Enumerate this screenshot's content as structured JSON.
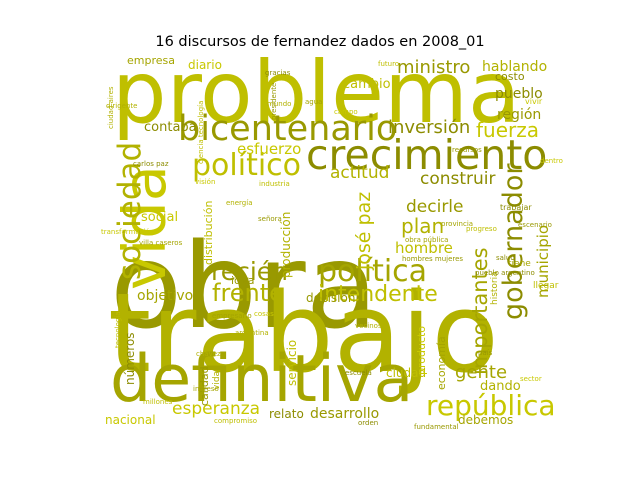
{
  "chart_data": {
    "type": "wordcloud",
    "title": "16 discursos de fernandez dados en 2008_01",
    "colors": [
      "#999900",
      "#b2b200",
      "#bfbf00",
      "#a5a500",
      "#c8c800",
      "#8c8c00"
    ],
    "words": [
      {
        "text": "obra",
        "weight": 1.0,
        "orientation": "horizontal"
      },
      {
        "text": "trabajo",
        "weight": 0.93,
        "orientation": "horizontal"
      },
      {
        "text": "problema",
        "weight": 0.73,
        "orientation": "horizontal"
      },
      {
        "text": "definitiva",
        "weight": 0.55,
        "orientation": "horizontal"
      },
      {
        "text": "vida",
        "weight": 0.5,
        "orientation": "vertical"
      },
      {
        "text": "crecimiento",
        "weight": 0.35,
        "orientation": "horizontal"
      },
      {
        "text": "bicentenario",
        "weight": 0.3,
        "orientation": "horizontal"
      },
      {
        "text": "sociedad",
        "weight": 0.26,
        "orientation": "vertical"
      },
      {
        "text": "político",
        "weight": 0.25,
        "orientation": "horizontal"
      },
      {
        "text": "política",
        "weight": 0.25,
        "orientation": "horizontal"
      },
      {
        "text": "república",
        "weight": 0.24,
        "orientation": "horizontal"
      },
      {
        "text": "gobernador",
        "weight": 0.23,
        "orientation": "vertical"
      },
      {
        "text": "recién",
        "weight": 0.21,
        "orientation": "horizontal"
      },
      {
        "text": "frente",
        "weight": 0.2,
        "orientation": "horizontal"
      },
      {
        "text": "intendente",
        "weight": 0.19,
        "orientation": "horizontal"
      },
      {
        "text": "importantes",
        "weight": 0.18,
        "orientation": "vertical"
      },
      {
        "text": "fuerza",
        "weight": 0.17,
        "orientation": "horizontal"
      },
      {
        "text": "inversión",
        "weight": 0.15,
        "orientation": "horizontal"
      },
      {
        "text": "ministro",
        "weight": 0.15,
        "orientation": "horizontal"
      },
      {
        "text": "plan",
        "weight": 0.17,
        "orientation": "horizontal"
      },
      {
        "text": "josé paz",
        "weight": 0.16,
        "orientation": "vertical"
      },
      {
        "text": "gente",
        "weight": 0.15,
        "orientation": "horizontal"
      },
      {
        "text": "esperanza",
        "weight": 0.14,
        "orientation": "horizontal"
      },
      {
        "text": "construir",
        "weight": 0.14,
        "orientation": "horizontal"
      },
      {
        "text": "decirle",
        "weight": 0.14,
        "orientation": "horizontal"
      },
      {
        "text": "actitud",
        "weight": 0.14,
        "orientation": "horizontal"
      },
      {
        "text": "hombre",
        "weight": 0.13,
        "orientation": "horizontal"
      },
      {
        "text": "municipio",
        "weight": 0.13,
        "orientation": "vertical"
      },
      {
        "text": "esfuerzo",
        "weight": 0.13,
        "orientation": "horizontal"
      },
      {
        "text": "pueblo",
        "weight": 0.12,
        "orientation": "horizontal"
      },
      {
        "text": "región",
        "weight": 0.12,
        "orientation": "horizontal"
      },
      {
        "text": "hablando",
        "weight": 0.12,
        "orientation": "horizontal"
      },
      {
        "text": "cambio",
        "weight": 0.11,
        "orientation": "horizontal"
      },
      {
        "text": "objetivo",
        "weight": 0.12,
        "orientation": "horizontal"
      },
      {
        "text": "social",
        "weight": 0.11,
        "orientation": "horizontal"
      },
      {
        "text": "contaba",
        "weight": 0.11,
        "orientation": "horizontal"
      },
      {
        "text": "desarrollo",
        "weight": 0.12,
        "orientation": "horizontal"
      },
      {
        "text": "dando",
        "weight": 0.11,
        "orientation": "horizontal"
      },
      {
        "text": "ciudad",
        "weight": 0.1,
        "orientation": "horizontal"
      },
      {
        "text": "debemos",
        "weight": 0.1,
        "orientation": "horizontal"
      },
      {
        "text": "nacional",
        "weight": 0.1,
        "orientation": "horizontal"
      },
      {
        "text": "relato",
        "weight": 0.1,
        "orientation": "horizontal"
      },
      {
        "text": "decisión",
        "weight": 0.1,
        "orientation": "horizontal"
      },
      {
        "text": "producción",
        "weight": 0.1,
        "orientation": "vertical"
      },
      {
        "text": "servicio",
        "weight": 0.1,
        "orientation": "vertical"
      },
      {
        "text": "economía",
        "weight": 0.09,
        "orientation": "vertical"
      },
      {
        "text": "producto",
        "weight": 0.09,
        "orientation": "vertical"
      },
      {
        "text": "números",
        "weight": 0.1,
        "orientation": "vertical"
      },
      {
        "text": "calidad",
        "weight": 0.09,
        "orientation": "vertical"
      },
      {
        "text": "vida",
        "weight": 0.08,
        "orientation": "vertical"
      },
      {
        "text": "distribución",
        "weight": 0.09,
        "orientation": "vertical"
      },
      {
        "text": "empresa",
        "weight": 0.09,
        "orientation": "horizontal"
      },
      {
        "text": "diario",
        "weight": 0.1,
        "orientation": "horizontal"
      },
      {
        "text": "costo",
        "weight": 0.09,
        "orientation": "horizontal"
      },
      {
        "text": "idea",
        "weight": 0.09,
        "orientation": "horizontal"
      },
      {
        "text": "historia",
        "weight": 0.08,
        "orientation": "vertical"
      },
      {
        "text": "llegar",
        "weight": 0.08,
        "orientation": "horizontal"
      },
      {
        "text": "tiene",
        "weight": 0.08,
        "orientation": "horizontal"
      },
      {
        "text": "vivir",
        "weight": 0.07,
        "orientation": "horizontal"
      },
      {
        "text": "trabajar",
        "weight": 0.07,
        "orientation": "horizontal"
      },
      {
        "text": "país",
        "weight": 0.06,
        "orientation": "horizontal"
      },
      {
        "text": "chávez",
        "weight": 0.06,
        "orientation": "horizontal"
      },
      {
        "text": "compromiso",
        "weight": 0.06,
        "orientation": "horizontal"
      },
      {
        "text": "ingreso",
        "weight": 0.05,
        "orientation": "horizontal"
      },
      {
        "text": "visión",
        "weight": 0.05,
        "orientation": "horizontal"
      },
      {
        "text": "orden",
        "weight": 0.05,
        "orientation": "horizontal"
      },
      {
        "text": "fundamental",
        "weight": 0.05,
        "orientation": "horizontal"
      },
      {
        "text": "argentina",
        "weight": 0.05,
        "orientation": "horizontal"
      },
      {
        "text": "futuro",
        "weight": 0.05,
        "orientation": "horizontal"
      },
      {
        "text": "provincia",
        "weight": 0.05,
        "orientation": "horizontal"
      },
      {
        "text": "sector",
        "weight": 0.04,
        "orientation": "horizontal"
      },
      {
        "text": "salud",
        "weight": 0.04,
        "orientation": "horizontal"
      },
      {
        "text": "señora",
        "weight": 0.04,
        "orientation": "horizontal"
      },
      {
        "text": "mundo",
        "weight": 0.04,
        "orientation": "horizontal"
      },
      {
        "text": "millones",
        "weight": 0.04,
        "orientation": "horizontal"
      },
      {
        "text": "agua",
        "weight": 0.05,
        "orientation": "horizontal"
      },
      {
        "text": "campo",
        "weight": 0.04,
        "orientation": "horizontal"
      },
      {
        "text": "escuela",
        "weight": 0.04,
        "orientation": "horizontal"
      },
      {
        "text": "presidente",
        "weight": 0.04,
        "orientation": "vertical"
      },
      {
        "text": "ciudad aires",
        "weight": 0.04,
        "orientation": "vertical"
      },
      {
        "text": "ciencia tecnología",
        "weight": 0.04,
        "orientation": "vertical"
      },
      {
        "text": "villa caseros",
        "weight": 0.04,
        "orientation": "horizontal"
      },
      {
        "text": "transformación",
        "weight": 0.04,
        "orientation": "horizontal"
      },
      {
        "text": "carlos paz",
        "weight": 0.04,
        "orientation": "horizontal"
      },
      {
        "text": "hombres mujeres",
        "weight": 0.04,
        "orientation": "horizontal"
      },
      {
        "text": "dirigente",
        "weight": 0.03,
        "orientation": "horizontal"
      },
      {
        "text": "industria",
        "weight": 0.03,
        "orientation": "horizontal"
      },
      {
        "text": "obra pública",
        "weight": 0.03,
        "orientation": "horizontal"
      },
      {
        "text": "dentro",
        "weight": 0.03,
        "orientation": "horizontal"
      },
      {
        "text": "pueblo argentino",
        "weight": 0.03,
        "orientation": "horizontal"
      },
      {
        "text": "recursos",
        "weight": 0.03,
        "orientation": "horizontal"
      },
      {
        "text": "energía",
        "weight": 0.03,
        "orientation": "horizontal"
      },
      {
        "text": "tecnología",
        "weight": 0.03,
        "orientation": "vertical"
      },
      {
        "text": "empresario",
        "weight": 0.03,
        "orientation": "horizontal"
      },
      {
        "text": "cosas",
        "weight": 0.03,
        "orientation": "horizontal"
      },
      {
        "text": "gracias",
        "weight": 0.03,
        "orientation": "horizontal"
      },
      {
        "text": "escenario",
        "weight": 0.03,
        "orientation": "horizontal"
      },
      {
        "text": "vecinos",
        "weight": 0.03,
        "orientation": "horizontal"
      },
      {
        "text": "progreso",
        "weight": 0.03,
        "orientation": "horizontal"
      },
      {
        "text": "rumbo",
        "weight": 0.03,
        "orientation": "horizontal"
      }
    ]
  }
}
